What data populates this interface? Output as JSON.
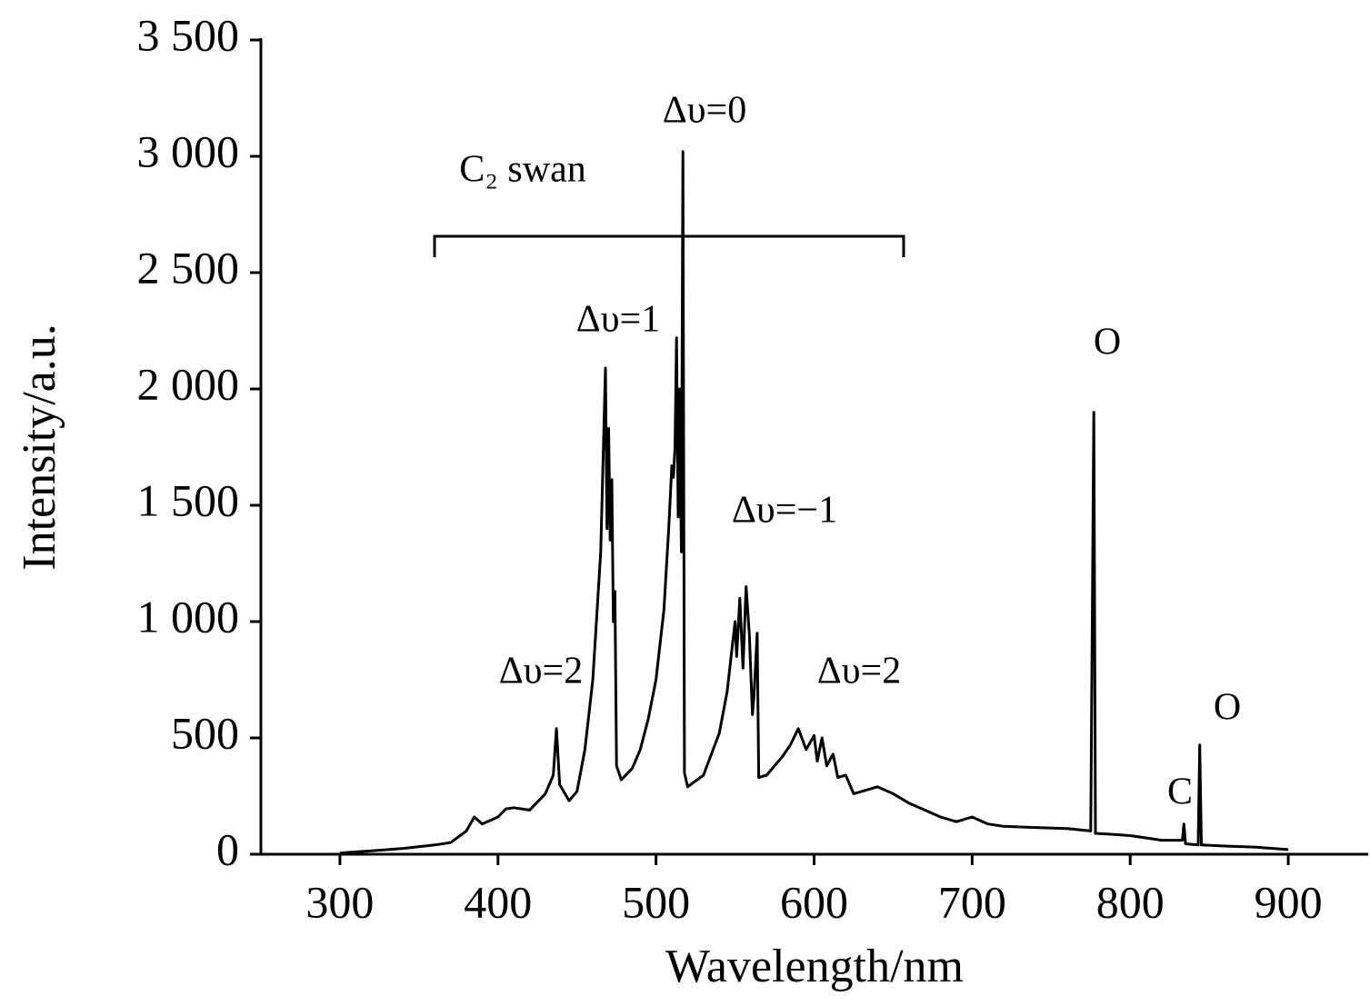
{
  "chart_data": {
    "type": "line",
    "x_label": "Wavelength/nm",
    "y_label": "Intensity/a.u.",
    "xlim": [
      250,
      950
    ],
    "xticks": [
      300,
      400,
      500,
      600,
      700,
      800,
      900
    ],
    "ylim": [
      0,
      3500
    ],
    "yticks": [
      0,
      500,
      {
        "value": 1000,
        "label": "1 000"
      },
      {
        "value": 1500,
        "label": "1 500"
      },
      {
        "value": 2000,
        "label": "2 000"
      },
      {
        "value": 2500,
        "label": "2 500"
      },
      {
        "value": 3000,
        "label": "3 000"
      },
      {
        "value": 3500,
        "label": "3 500"
      }
    ],
    "color": "#000000",
    "annotations": [
      "Δυ=0",
      "C₂  swan",
      "Δυ=1",
      "Δυ=−1",
      "Δυ=2",
      "Δυ=2",
      "O",
      "C",
      "O"
    ],
    "x": [
      300,
      320,
      340,
      360,
      370,
      380,
      385,
      390,
      400,
      405,
      410,
      420,
      430,
      435,
      437,
      439,
      445,
      450,
      455,
      460,
      465,
      468,
      469,
      470,
      471,
      472,
      473,
      474,
      475,
      478,
      485,
      490,
      495,
      500,
      505,
      508,
      510,
      511,
      512,
      513,
      514,
      515,
      516,
      517,
      518,
      520,
      530,
      540,
      545,
      548,
      550,
      551,
      553,
      555,
      557,
      559,
      561,
      562,
      564,
      565,
      570,
      580,
      585,
      590,
      595,
      600,
      602,
      605,
      608,
      612,
      615,
      620,
      625,
      630,
      640,
      650,
      660,
      670,
      680,
      690,
      700,
      710,
      720,
      740,
      760,
      775,
      777,
      778,
      790,
      800,
      820,
      833,
      834,
      835,
      843,
      844,
      845,
      860,
      880,
      900
    ],
    "values": [
      5,
      15,
      25,
      40,
      50,
      100,
      160,
      130,
      160,
      195,
      200,
      190,
      260,
      340,
      540,
      300,
      230,
      270,
      450,
      750,
      1300,
      2090,
      1400,
      1830,
      1350,
      1610,
      1000,
      1130,
      380,
      320,
      370,
      450,
      580,
      750,
      1050,
      1400,
      1670,
      1620,
      1750,
      2220,
      1450,
      2000,
      1300,
      3020,
      350,
      290,
      340,
      520,
      700,
      880,
      1000,
      850,
      1100,
      800,
      1150,
      950,
      600,
      680,
      950,
      330,
      340,
      420,
      470,
      540,
      450,
      510,
      400,
      500,
      380,
      430,
      330,
      340,
      260,
      270,
      290,
      260,
      220,
      190,
      160,
      140,
      160,
      130,
      120,
      115,
      110,
      100,
      1900,
      90,
      85,
      80,
      60,
      60,
      130,
      45,
      40,
      470,
      40,
      35,
      30,
      20
    ]
  }
}
